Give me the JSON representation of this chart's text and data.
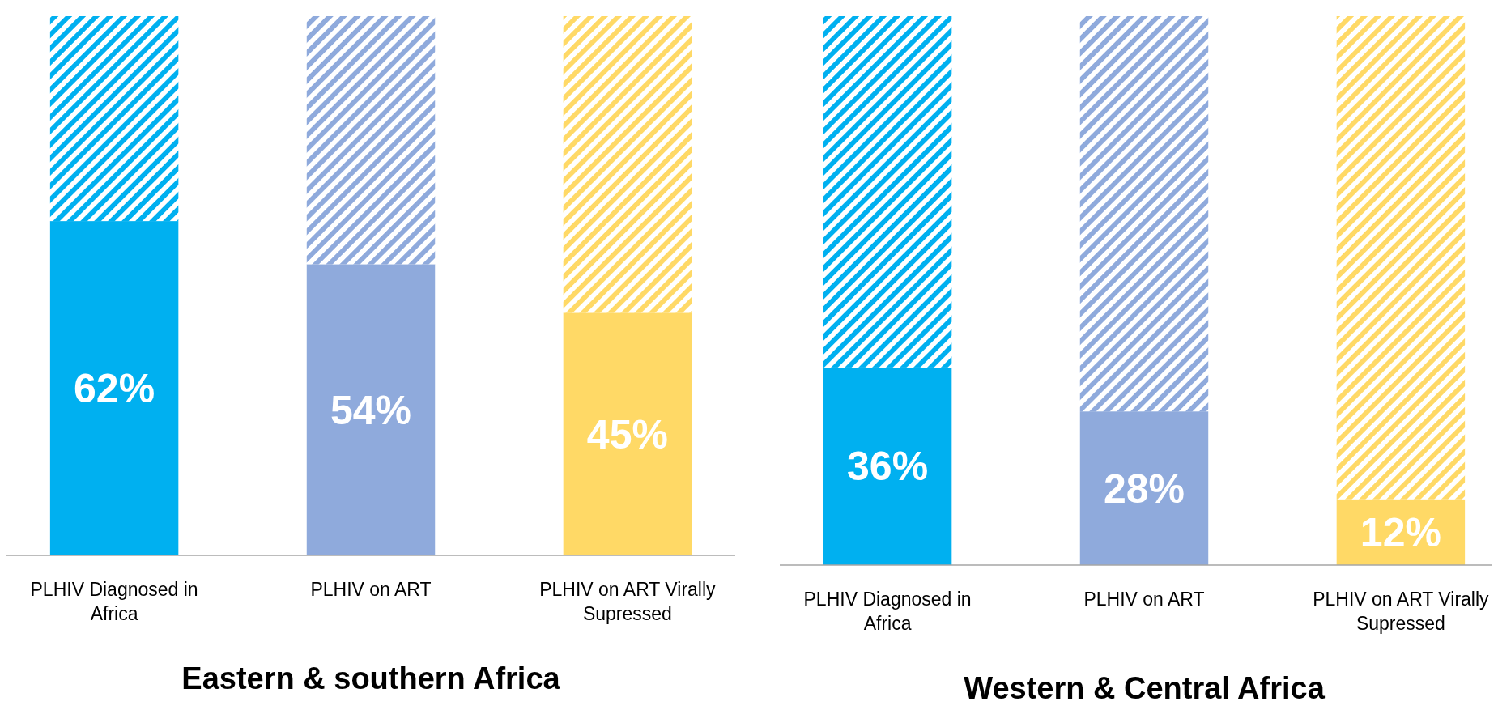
{
  "chart_data": [
    {
      "type": "bar",
      "title": "Eastern & southern Africa",
      "stacked": true,
      "ylim": [
        0,
        100
      ],
      "tick_labels": false,
      "categories": [
        "PLHIV Diagnosed in Africa",
        "PLHIV on ART",
        "PLHIV on ART Virally Supressed"
      ],
      "series": [
        {
          "colors": [
            "#00b0f0",
            "#8faadc",
            "#ffd966"
          ],
          "values": [
            62,
            54,
            45
          ],
          "value_labels": [
            "62%",
            "54%",
            "45%"
          ]
        },
        {
          "colors": [
            "#00b0f0",
            "#8faadc",
            "#ffd966"
          ],
          "values": [
            38,
            46,
            55
          ]
        }
      ]
    },
    {
      "type": "bar",
      "title": "Western & Central Africa",
      "stacked": true,
      "ylim": [
        0,
        100
      ],
      "tick_labels": false,
      "categories": [
        "PLHIV Diagnosed in Africa",
        "PLHIV on ART",
        "PLHIV on ART Virally Supressed"
      ],
      "series": [
        {
          "colors": [
            "#00b0f0",
            "#8faadc",
            "#ffd966"
          ],
          "values": [
            36,
            28,
            12
          ],
          "value_labels": [
            "36%",
            "28%",
            "12%"
          ]
        },
        {
          "colors": [
            "#00b0f0",
            "#8faadc",
            "#ffd966"
          ],
          "values": [
            64,
            72,
            88
          ]
        }
      ]
    }
  ]
}
